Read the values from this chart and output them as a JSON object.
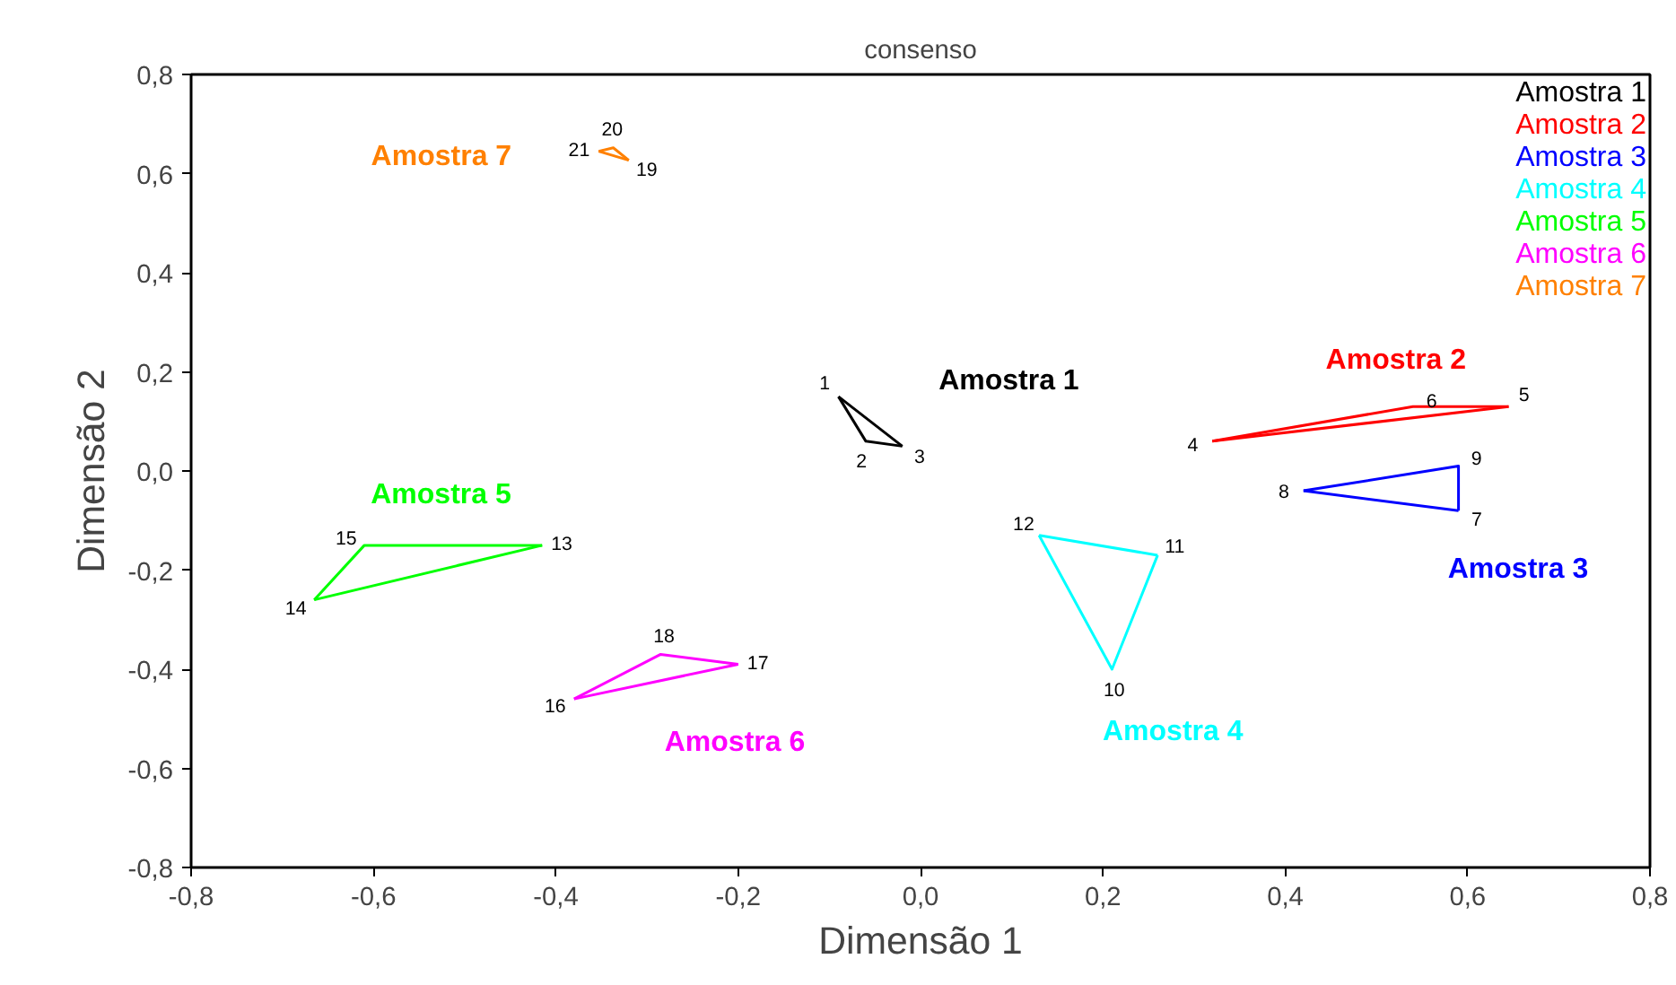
{
  "chart_data": {
    "type": "line",
    "title": "consenso",
    "xlabel": "Dimensão 1",
    "ylabel": "Dimensão 2",
    "xlim": [
      -0.8,
      0.8
    ],
    "ylim": [
      -0.8,
      0.8
    ],
    "xticks": [
      {
        "value": -0.8,
        "label": "-0,8"
      },
      {
        "value": -0.6,
        "label": "-0,6"
      },
      {
        "value": -0.4,
        "label": "-0,4"
      },
      {
        "value": -0.2,
        "label": "-0,2"
      },
      {
        "value": 0,
        "label": "0,0"
      },
      {
        "value": 0.2,
        "label": "0,2"
      },
      {
        "value": 0.4,
        "label": "0,4"
      },
      {
        "value": 0.6,
        "label": "0,6"
      },
      {
        "value": 0.8,
        "label": "0,8"
      }
    ],
    "yticks": [
      {
        "value": -0.8,
        "label": "-0,8"
      },
      {
        "value": -0.6,
        "label": "-0,6"
      },
      {
        "value": -0.4,
        "label": "-0,4"
      },
      {
        "value": -0.2,
        "label": "-0,2"
      },
      {
        "value": 0,
        "label": "0,0"
      },
      {
        "value": 0.2,
        "label": "0,2"
      },
      {
        "value": 0.4,
        "label": "0,4"
      },
      {
        "value": 0.6,
        "label": "0,6"
      },
      {
        "value": 0.8,
        "label": "0,8"
      }
    ],
    "grid": false,
    "legend": "top right",
    "marker": "none",
    "line_style": "solid",
    "series": [
      {
        "name": "Amostra 1",
        "color": "#000000",
        "x": [
          -0.09,
          -0.06,
          -0.02
        ],
        "values": [
          0.15,
          0.06,
          0.05
        ]
      },
      {
        "name": "Amostra 2",
        "color": "#ff0000",
        "x": [
          0.32,
          0.54,
          0.645
        ],
        "values": [
          0.06,
          0.13,
          0.13
        ]
      },
      {
        "name": "Amostra 3",
        "color": "#0000ff",
        "x": [
          0.42,
          0.59,
          0.59
        ],
        "values": [
          -0.04,
          0.01,
          -0.08
        ]
      },
      {
        "name": "Amostra 4",
        "color": "#00ffff",
        "x": [
          0.13,
          0.21,
          0.26
        ],
        "values": [
          -0.13,
          -0.4,
          -0.17
        ]
      },
      {
        "name": "Amostra 5",
        "color": "#00ff00",
        "x": [
          -0.665,
          -0.61,
          -0.415
        ],
        "values": [
          -0.26,
          -0.15,
          -0.15
        ]
      },
      {
        "name": "Amostra 6",
        "color": "#ff00ff",
        "x": [
          -0.38,
          -0.285,
          -0.2
        ],
        "values": [
          -0.46,
          -0.37,
          -0.39
        ]
      },
      {
        "name": "Amostra 7",
        "color": "#ff8000",
        "x": [
          -0.353,
          -0.337,
          -0.32
        ],
        "values": [
          0.645,
          0.652,
          0.627
        ]
      },
      {
        "color": "#000000",
        "x": [
          -0.02,
          -0.09
        ],
        "values": [
          0.05,
          0.15
        ]
      },
      {
        "color": "#ff0000",
        "x": [
          0.645,
          0.32
        ],
        "values": [
          0.13,
          0.06
        ]
      },
      {
        "color": "#0000ff",
        "x": [
          0.59,
          0.42
        ],
        "values": [
          -0.08,
          -0.04
        ]
      },
      {
        "color": "#00ffff",
        "x": [
          0.26,
          0.13
        ],
        "values": [
          -0.17,
          -0.13
        ]
      },
      {
        "color": "#00ff00",
        "x": [
          -0.415,
          -0.665
        ],
        "values": [
          -0.15,
          -0.26
        ]
      },
      {
        "color": "#ff00ff",
        "x": [
          -0.2,
          -0.38
        ],
        "values": [
          -0.39,
          -0.46
        ]
      },
      {
        "color": "#ff8000",
        "x": [
          -0.32,
          -0.353
        ],
        "values": [
          0.627,
          0.645
        ]
      }
    ],
    "annotations": [
      "Amostra 1",
      "Amostra 2",
      "Amostra 3",
      "Amostra 4",
      "Amostra 5",
      "Amostra 6",
      "Amostra 7",
      {
        "text": "1",
        "x": -0.09,
        "y": 0.15
      },
      {
        "text": "2",
        "x": -0.06,
        "y": 0.06
      },
      {
        "text": "3",
        "x": -0.02,
        "y": 0.05
      },
      {
        "text": "4",
        "x": 0.32,
        "y": 0.06
      },
      {
        "text": "5",
        "x": 0.645,
        "y": 0.13
      },
      {
        "text": "6",
        "x": 0.54,
        "y": 0.13
      },
      {
        "text": "7",
        "x": 0.59,
        "y": -0.08
      },
      {
        "text": "8",
        "x": 0.42,
        "y": -0.04
      },
      {
        "text": "9",
        "x": 0.59,
        "y": 0.01
      },
      {
        "text": "10",
        "x": 0.21,
        "y": -0.4
      },
      {
        "text": "11",
        "x": 0.26,
        "y": -0.17
      },
      {
        "text": "12",
        "x": 0.13,
        "y": -0.13
      },
      {
        "text": "13",
        "x": -0.415,
        "y": -0.15
      },
      {
        "text": "14",
        "x": -0.665,
        "y": -0.26
      },
      {
        "text": "15",
        "x": -0.61,
        "y": -0.15
      },
      {
        "text": "16",
        "x": -0.38,
        "y": -0.46
      },
      {
        "text": "17",
        "x": -0.2,
        "y": -0.39
      },
      {
        "text": "18",
        "x": -0.285,
        "y": -0.37
      },
      {
        "text": "19",
        "x": -0.32,
        "y": 0.627
      },
      {
        "text": "20",
        "x": -0.337,
        "y": 0.652
      },
      {
        "text": "21",
        "x": -0.353,
        "y": 0.645
      }
    ]
  }
}
